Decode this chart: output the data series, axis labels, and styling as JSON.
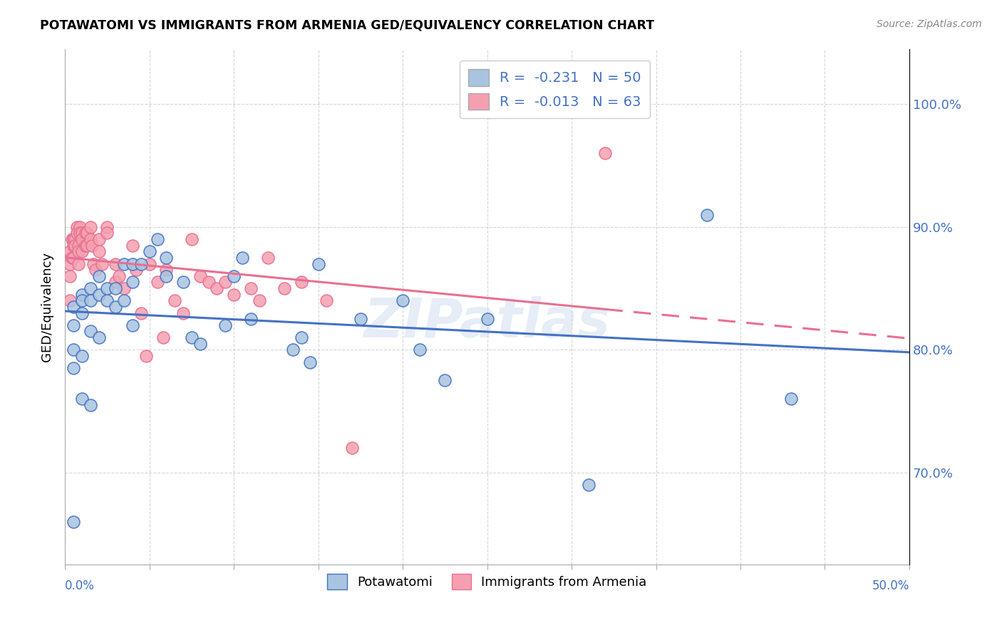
{
  "title": "POTAWATOMI VS IMMIGRANTS FROM ARMENIA GED/EQUIVALENCY CORRELATION CHART",
  "source": "Source: ZipAtlas.com",
  "ylabel": "GED/Equivalency",
  "ytick_values": [
    0.7,
    0.8,
    0.9,
    1.0
  ],
  "xlim": [
    0.0,
    50.0
  ],
  "ylim": [
    0.625,
    1.045
  ],
  "legend_label1": "Potawatomi",
  "legend_label2": "Immigrants from Armenia",
  "R1": -0.231,
  "N1": 50,
  "R2": -0.013,
  "N2": 63,
  "color_blue": "#a8c4e0",
  "color_pink": "#f4a0b0",
  "line_blue": "#4472c4",
  "line_pink": "#e87090",
  "watermark": "ZIPatlas",
  "potawatomi_x": [
    0.5,
    0.5,
    0.5,
    0.5,
    0.5,
    1.0,
    1.0,
    1.0,
    1.0,
    1.0,
    1.5,
    1.5,
    1.5,
    1.5,
    2.0,
    2.0,
    2.0,
    2.5,
    2.5,
    3.0,
    3.0,
    3.5,
    3.5,
    4.0,
    4.0,
    4.0,
    4.5,
    5.0,
    5.5,
    6.0,
    6.0,
    7.0,
    7.5,
    8.0,
    9.5,
    10.0,
    10.5,
    11.0,
    13.5,
    14.0,
    14.5,
    15.0,
    17.5,
    20.0,
    21.0,
    22.5,
    25.0,
    31.0,
    38.0,
    43.0
  ],
  "potawatomi_y": [
    0.835,
    0.82,
    0.8,
    0.785,
    0.66,
    0.845,
    0.84,
    0.83,
    0.795,
    0.76,
    0.85,
    0.84,
    0.815,
    0.755,
    0.86,
    0.845,
    0.81,
    0.85,
    0.84,
    0.85,
    0.835,
    0.87,
    0.84,
    0.87,
    0.855,
    0.82,
    0.87,
    0.88,
    0.89,
    0.875,
    0.86,
    0.855,
    0.81,
    0.805,
    0.82,
    0.86,
    0.875,
    0.825,
    0.8,
    0.81,
    0.79,
    0.87,
    0.825,
    0.84,
    0.8,
    0.775,
    0.825,
    0.69,
    0.91,
    0.76
  ],
  "armenia_x": [
    0.3,
    0.3,
    0.3,
    0.3,
    0.4,
    0.4,
    0.5,
    0.5,
    0.5,
    0.6,
    0.6,
    0.7,
    0.7,
    0.8,
    0.8,
    0.8,
    0.9,
    0.9,
    1.0,
    1.0,
    1.0,
    1.2,
    1.2,
    1.3,
    1.3,
    1.5,
    1.5,
    1.6,
    1.7,
    1.8,
    2.0,
    2.0,
    2.2,
    2.5,
    2.5,
    3.0,
    3.0,
    3.2,
    3.5,
    4.0,
    4.2,
    4.5,
    4.8,
    5.0,
    5.5,
    5.8,
    6.0,
    6.5,
    7.0,
    7.5,
    8.0,
    8.5,
    9.0,
    9.5,
    10.0,
    11.0,
    11.5,
    12.0,
    13.0,
    14.0,
    15.5,
    17.0,
    32.0
  ],
  "armenia_y": [
    0.88,
    0.87,
    0.86,
    0.84,
    0.89,
    0.875,
    0.89,
    0.885,
    0.875,
    0.89,
    0.885,
    0.9,
    0.895,
    0.885,
    0.88,
    0.87,
    0.9,
    0.895,
    0.895,
    0.89,
    0.88,
    0.895,
    0.885,
    0.895,
    0.885,
    0.9,
    0.89,
    0.885,
    0.87,
    0.865,
    0.89,
    0.88,
    0.87,
    0.9,
    0.895,
    0.87,
    0.855,
    0.86,
    0.85,
    0.885,
    0.865,
    0.83,
    0.795,
    0.87,
    0.855,
    0.81,
    0.865,
    0.84,
    0.83,
    0.89,
    0.86,
    0.855,
    0.85,
    0.855,
    0.845,
    0.85,
    0.84,
    0.875,
    0.85,
    0.855,
    0.84,
    0.72,
    0.96
  ]
}
